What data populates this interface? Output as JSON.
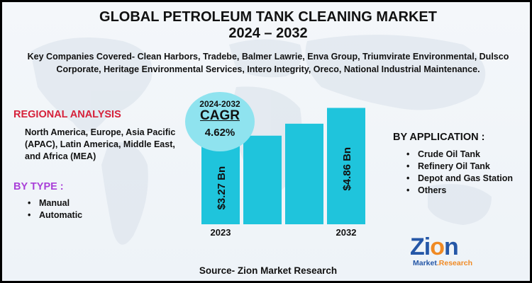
{
  "title": {
    "line1": "GLOBAL PETROLEUM TANK CLEANING MARKET",
    "line2": "2024 – 2032"
  },
  "companies": "Key Companies Covered- Clean Harbors, Tradebe, Balmer Lawrie, Enva Group, Triumvirate Environmental, Dulsco Corporate, Heritage Environmental Services, Intero Integrity, Oreco, National Industrial Maintenance.",
  "regional": {
    "heading": "REGIONAL ANALYSIS",
    "text": "North America, Europe, Asia Pacific (APAC), Latin America, Middle East, and Africa (MEA)"
  },
  "by_type": {
    "heading": "BY TYPE :",
    "items": [
      "Manual",
      "Automatic"
    ]
  },
  "by_application": {
    "heading": "BY APPLICATION :",
    "items": [
      "Crude Oil Tank",
      "Refinery Oil Tank",
      "Depot and Gas Station",
      "Others"
    ]
  },
  "cagr": {
    "years": "2024-2032",
    "label": "CAGR",
    "value": "4.62%"
  },
  "source": "Source- Zion Market Research",
  "logo": {
    "name": "Zion",
    "sub_market": "Market",
    "sub_research": ".Research"
  },
  "colors": {
    "bar": "#1fc4dc",
    "regional_heading": "#d6213a",
    "type_heading": "#a93fd8",
    "cagr_bubble": "#8fe3ef",
    "logo_blue": "#2557a7",
    "logo_orange": "#f08a24"
  },
  "chart_data": {
    "type": "bar",
    "categories": [
      "2023",
      "",
      "",
      "2032"
    ],
    "values": [
      3.27,
      3.7,
      4.2,
      4.86
    ],
    "data_labels": [
      "$3.27 Bn",
      "",
      "",
      "$4.86 Bn"
    ],
    "ylim": [
      0,
      5.2
    ],
    "grid": false
  }
}
